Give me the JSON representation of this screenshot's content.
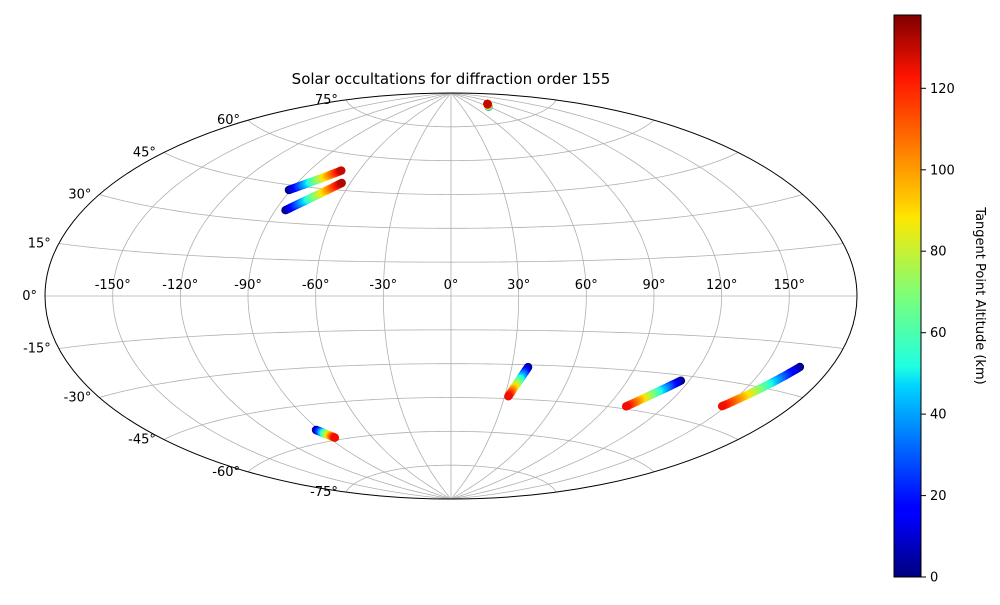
{
  "chart_data": {
    "type": "scatter",
    "projection": "aitoff",
    "title": "Solar occultations for diffraction order 155",
    "grid": true,
    "lon_ticks": [
      {
        "value": -150,
        "label": "-150°"
      },
      {
        "value": -120,
        "label": "-120°"
      },
      {
        "value": -90,
        "label": "-90°"
      },
      {
        "value": -60,
        "label": "-60°"
      },
      {
        "value": -30,
        "label": "-30°"
      },
      {
        "value": 0,
        "label": "0°"
      },
      {
        "value": 30,
        "label": "30°"
      },
      {
        "value": 60,
        "label": "60°"
      },
      {
        "value": 90,
        "label": "90°"
      },
      {
        "value": 120,
        "label": "120°"
      },
      {
        "value": 150,
        "label": "150°"
      }
    ],
    "lat_ticks": [
      {
        "value": 75,
        "label": "75°"
      },
      {
        "value": 60,
        "label": "60°"
      },
      {
        "value": 45,
        "label": "45°"
      },
      {
        "value": 30,
        "label": "30°"
      },
      {
        "value": 15,
        "label": "15°"
      },
      {
        "value": 0,
        "label": "0°"
      },
      {
        "value": -15,
        "label": "-15°"
      },
      {
        "value": -30,
        "label": "-30°"
      },
      {
        "value": -45,
        "label": "-45°"
      },
      {
        "value": -60,
        "label": "-60°"
      },
      {
        "value": -75,
        "label": "-75°"
      }
    ],
    "colorbar": {
      "label": "Tangent Point Altitude (km)",
      "range": [
        0,
        138
      ],
      "colormap": "jet",
      "ticks": [
        {
          "value": 0,
          "label": "0"
        },
        {
          "value": 20,
          "label": "20"
        },
        {
          "value": 40,
          "label": "40"
        },
        {
          "value": 60,
          "label": "60"
        },
        {
          "value": 80,
          "label": "80"
        },
        {
          "value": 100,
          "label": "100"
        },
        {
          "value": 120,
          "label": "120"
        }
      ]
    },
    "tracks": [
      {
        "lon_start": -91,
        "lat_start": 43,
        "lon_end": -71,
        "lat_end": 53,
        "alt_start": 0,
        "alt_end": 130
      },
      {
        "lon_start": -85,
        "lat_start": 35,
        "lon_end": -65,
        "lat_end": 48,
        "alt_start": 0,
        "alt_end": 132
      },
      {
        "lon_start": 90,
        "lat_start": 82,
        "lon_end": 101,
        "lat_end": 83,
        "alt_start": 30,
        "alt_end": 130
      },
      {
        "lon_start": -92,
        "lat_start": -55,
        "lon_end": -86,
        "lat_end": -59,
        "alt_start": 0,
        "alt_end": 125
      },
      {
        "lon_start": 38,
        "lat_start": -31,
        "lon_end": 32,
        "lat_end": -44,
        "alt_start": 0,
        "alt_end": 125
      },
      {
        "lon_start": 116,
        "lat_start": -32,
        "lon_end": 100,
        "lat_end": -44,
        "alt_start": 0,
        "alt_end": 125
      },
      {
        "lon_start": 166,
        "lat_start": -22,
        "lon_end": 148,
        "lat_end": -38,
        "alt_start": 0,
        "alt_end": 125
      }
    ]
  }
}
